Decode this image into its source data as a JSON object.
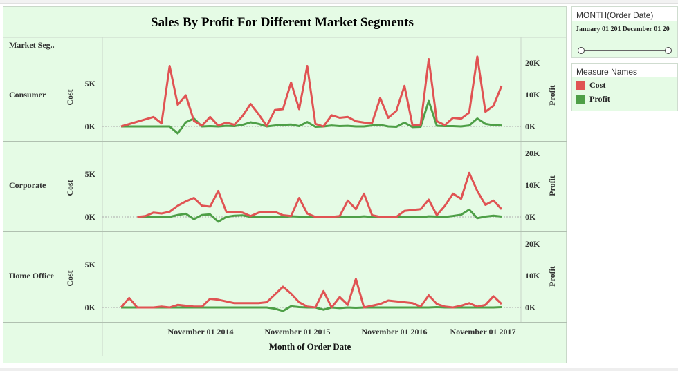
{
  "chart_data": {
    "type": "line",
    "title": "Sales By Profit For Different Market Segments",
    "row_header": "Market Seg..",
    "xlabel": "Month of Order Date",
    "x_ticks": [
      "November 01 2014",
      "November 01 2015",
      "November 01 2016",
      "November 01 2017"
    ],
    "x_range": [
      "2014-01",
      "2017-12"
    ],
    "left_axis": {
      "label": "Cost",
      "ticks": [
        "0K",
        "5K"
      ],
      "range": [
        0,
        10000
      ]
    },
    "right_axis": {
      "label": "Profit",
      "ticks": [
        "0K",
        "10K",
        "20K"
      ],
      "range": [
        0,
        25000
      ]
    },
    "series_colors": {
      "Cost": "#e05353",
      "Profit": "#4e9f47"
    },
    "panels": [
      {
        "segment": "Consumer",
        "x": [
          "2014-01",
          "2014-05",
          "2014-06",
          "2014-07",
          "2014-08",
          "2014-09",
          "2014-10",
          "2014-11",
          "2014-12",
          "2015-01",
          "2015-02",
          "2015-03",
          "2015-04",
          "2015-05",
          "2015-06",
          "2015-07",
          "2015-08",
          "2015-09",
          "2015-10",
          "2015-11",
          "2015-12",
          "2016-01",
          "2016-02",
          "2016-03",
          "2016-04",
          "2016-05",
          "2016-06",
          "2016-07",
          "2016-08",
          "2016-09",
          "2016-10",
          "2016-11",
          "2016-12",
          "2017-01",
          "2017-02",
          "2017-03",
          "2017-04",
          "2017-05",
          "2017-06",
          "2017-07",
          "2017-08",
          "2017-09",
          "2017-10",
          "2017-11",
          "2017-12"
        ],
        "cost": [
          0,
          1100,
          350,
          7000,
          2500,
          3600,
          650,
          100,
          1100,
          100,
          450,
          200,
          1200,
          2600,
          1400,
          50,
          1900,
          2000,
          5100,
          2000,
          7000,
          300,
          0,
          1300,
          1000,
          1100,
          600,
          450,
          400,
          3300,
          1000,
          1800,
          4700,
          100,
          200,
          7800,
          600,
          150,
          1000,
          900,
          1600,
          8100,
          1700,
          2400,
          4700
        ],
        "profit": [
          0,
          0,
          0,
          0,
          -2200,
          1300,
          2500,
          0,
          100,
          0,
          200,
          100,
          500,
          1300,
          800,
          0,
          300,
          500,
          600,
          100,
          1400,
          -100,
          0,
          300,
          100,
          200,
          0,
          0,
          300,
          500,
          0,
          -100,
          1200,
          -200,
          -100,
          8000,
          200,
          100,
          100,
          0,
          300,
          2500,
          800,
          400,
          300
        ]
      },
      {
        "segment": "Corporate",
        "x": [
          "2014-03",
          "2014-04",
          "2014-05",
          "2014-06",
          "2014-07",
          "2014-08",
          "2014-09",
          "2014-10",
          "2014-11",
          "2014-12",
          "2015-01",
          "2015-02",
          "2015-03",
          "2015-04",
          "2015-05",
          "2015-06",
          "2015-07",
          "2015-08",
          "2015-09",
          "2015-10",
          "2015-11",
          "2015-12",
          "2016-01",
          "2016-02",
          "2016-03",
          "2016-04",
          "2016-05",
          "2016-06",
          "2016-07",
          "2016-08",
          "2016-09",
          "2016-10",
          "2016-11",
          "2016-12",
          "2017-01",
          "2017-02",
          "2017-03",
          "2017-04",
          "2017-05",
          "2017-06",
          "2017-07",
          "2017-08",
          "2017-09",
          "2017-10",
          "2017-11",
          "2017-12"
        ],
        "cost": [
          0,
          100,
          500,
          400,
          600,
          1300,
          1800,
          2200,
          1300,
          1200,
          3000,
          600,
          600,
          500,
          100,
          500,
          600,
          600,
          200,
          100,
          2200,
          400,
          0,
          0,
          0,
          100,
          1900,
          900,
          2700,
          200,
          0,
          0,
          0,
          700,
          800,
          900,
          2000,
          200,
          1300,
          2700,
          2100,
          5100,
          3000,
          1400,
          1900,
          900
        ],
        "profit": [
          0,
          0,
          0,
          0,
          0,
          600,
          1000,
          -700,
          600,
          800,
          -1500,
          0,
          400,
          500,
          0,
          0,
          0,
          0,
          0,
          200,
          100,
          0,
          0,
          100,
          0,
          0,
          0,
          0,
          200,
          0,
          100,
          100,
          100,
          100,
          100,
          -100,
          200,
          100,
          0,
          300,
          700,
          2300,
          -400,
          100,
          400,
          100
        ]
      },
      {
        "segment": "Home Office",
        "x": [
          "2014-01",
          "2014-02",
          "2014-03",
          "2014-04",
          "2014-05",
          "2014-06",
          "2014-07",
          "2014-08",
          "2014-09",
          "2014-10",
          "2014-11",
          "2014-12",
          "2015-01",
          "2015-02",
          "2015-03",
          "2015-04",
          "2015-05",
          "2015-06",
          "2015-07",
          "2015-08",
          "2015-09",
          "2015-10",
          "2015-11",
          "2015-12",
          "2016-01",
          "2016-02",
          "2016-03",
          "2016-04",
          "2016-05",
          "2016-06",
          "2016-07",
          "2016-08",
          "2016-09",
          "2016-10",
          "2016-11",
          "2016-12",
          "2017-01",
          "2017-02",
          "2017-03",
          "2017-04",
          "2017-05",
          "2017-06",
          "2017-07",
          "2017-08",
          "2017-09",
          "2017-10",
          "2017-11",
          "2017-12"
        ],
        "cost": [
          0,
          1100,
          0,
          0,
          0,
          100,
          0,
          300,
          200,
          100,
          100,
          1000,
          900,
          700,
          500,
          500,
          500,
          500,
          600,
          1500,
          2400,
          1600,
          600,
          100,
          0,
          1900,
          0,
          1200,
          300,
          3300,
          0,
          200,
          400,
          800,
          700,
          600,
          500,
          100,
          1400,
          400,
          100,
          0,
          200,
          500,
          100,
          300,
          1300,
          400
        ],
        "profit": [
          0,
          0,
          0,
          0,
          0,
          0,
          0,
          0,
          0,
          0,
          0,
          0,
          0,
          0,
          0,
          0,
          0,
          0,
          0,
          -400,
          -1100,
          400,
          100,
          0,
          0,
          -700,
          0,
          -200,
          0,
          -100,
          0,
          0,
          0,
          0,
          0,
          0,
          0,
          0,
          0,
          100,
          0,
          0,
          0,
          0,
          0,
          0,
          0,
          100
        ]
      }
    ]
  },
  "filter_card": {
    "title": "MONTH(Order Date)",
    "start_label": "January 01 201",
    "end_label": "December 01 20"
  },
  "legend_card": {
    "title": "Measure Names",
    "items": [
      {
        "label": "Cost",
        "color": "#e05353"
      },
      {
        "label": "Profit",
        "color": "#4e9f47"
      }
    ]
  }
}
